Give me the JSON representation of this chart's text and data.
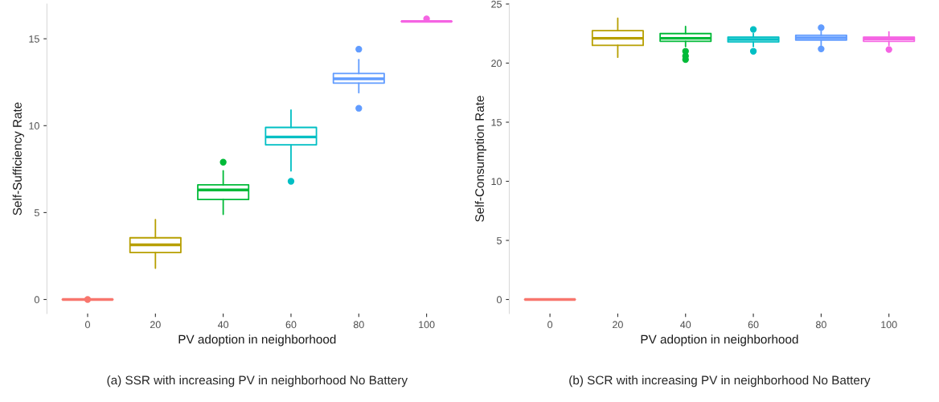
{
  "chart_data": [
    {
      "type": "box",
      "title": "(a) SSR with increasing PV in neighborhood No Battery",
      "xlabel": "PV adoption in neighborhood",
      "ylabel": "Self-Sufficiency Rate",
      "categories": [
        "0",
        "20",
        "40",
        "60",
        "80",
        "100"
      ],
      "colors": [
        "#f8766d",
        "#b79f00",
        "#00ba38",
        "#00bfc4",
        "#619cff",
        "#f564e3"
      ],
      "boxes": [
        {
          "low": 0,
          "q1": 0,
          "median": 0,
          "q3": 0,
          "high": 0,
          "outliers": [
            0
          ]
        },
        {
          "low": 1.8,
          "q1": 2.7,
          "median": 3.15,
          "q3": 3.55,
          "high": 4.6
        },
        {
          "low": 4.9,
          "q1": 5.75,
          "median": 6.3,
          "q3": 6.6,
          "high": 7.4,
          "outliers": [
            7.9
          ]
        },
        {
          "low": 7.4,
          "q1": 8.9,
          "median": 9.35,
          "q3": 9.9,
          "high": 10.9,
          "outliers": [
            6.8
          ]
        },
        {
          "low": 11.9,
          "q1": 12.45,
          "median": 12.7,
          "q3": 13.0,
          "high": 13.8,
          "outliers": [
            14.4,
            11.0
          ]
        },
        {
          "low": 16.0,
          "q1": 16.0,
          "median": 16.0,
          "q3": 16.0,
          "high": 16.0,
          "outliers": [
            16.15
          ]
        }
      ],
      "ylim": [
        -0.81,
        17.0
      ],
      "yticks": [
        0,
        5,
        10,
        15
      ],
      "grid": false
    },
    {
      "type": "box",
      "title": "(b) SCR with increasing PV in neighborhood No Battery",
      "xlabel": "PV adoption in neighborhood",
      "ylabel": "Self-Consumption Rate",
      "categories": [
        "0",
        "20",
        "40",
        "60",
        "80",
        "100"
      ],
      "colors": [
        "#f8766d",
        "#b79f00",
        "#00ba38",
        "#00bfc4",
        "#619cff",
        "#f564e3"
      ],
      "boxes": [
        {
          "low": 0,
          "q1": 0,
          "median": 0,
          "q3": 0,
          "high": 0
        },
        {
          "low": 20.5,
          "q1": 21.5,
          "median": 22.1,
          "q3": 22.75,
          "high": 23.8
        },
        {
          "low": 21.4,
          "q1": 21.85,
          "median": 22.1,
          "q3": 22.5,
          "high": 23.1,
          "outliers": [
            21.0,
            20.6,
            20.3
          ]
        },
        {
          "low": 21.4,
          "q1": 21.8,
          "median": 22.0,
          "q3": 22.2,
          "high": 22.5,
          "outliers": [
            22.85,
            21.0
          ]
        },
        {
          "low": 21.5,
          "q1": 21.95,
          "median": 22.15,
          "q3": 22.35,
          "high": 22.7,
          "outliers": [
            23.0,
            21.2
          ]
        },
        {
          "low": 21.5,
          "q1": 21.85,
          "median": 22.05,
          "q3": 22.2,
          "high": 22.65,
          "outliers": [
            21.15
          ]
        }
      ],
      "ylim": [
        -1.19,
        25.0
      ],
      "yticks": [
        0,
        5,
        10,
        15,
        20,
        25
      ],
      "grid": false
    }
  ]
}
